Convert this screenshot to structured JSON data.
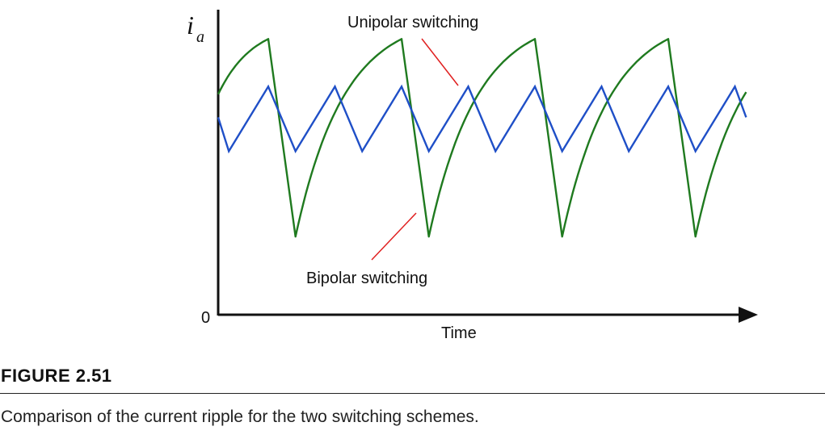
{
  "figure": {
    "label": "FIGURE 2.51",
    "caption": "Comparison of the current ripple for the two switching schemes."
  },
  "chart_data": {
    "type": "line",
    "xlabel": "Time",
    "ylabel": {
      "main": "i",
      "subscript": "a"
    },
    "y_origin_label": "0",
    "grid": false,
    "series": [
      {
        "name": "Unipolar switching",
        "color": "#1f4fc7",
        "points": [
          [
            0.0,
            0.647
          ],
          [
            0.02,
            0.536
          ],
          [
            0.094,
            0.748
          ],
          [
            0.145,
            0.536
          ],
          [
            0.219,
            0.748
          ],
          [
            0.27,
            0.536
          ],
          [
            0.344,
            0.748
          ],
          [
            0.395,
            0.536
          ],
          [
            0.469,
            0.748
          ],
          [
            0.52,
            0.536
          ],
          [
            0.594,
            0.748
          ],
          [
            0.645,
            0.536
          ],
          [
            0.719,
            0.748
          ],
          [
            0.77,
            0.536
          ],
          [
            0.844,
            0.748
          ],
          [
            0.895,
            0.536
          ],
          [
            0.969,
            0.748
          ],
          [
            0.99,
            0.647
          ]
        ]
      },
      {
        "name": "Bipolar switching",
        "color": "#1f7a1f",
        "segments": [
          {
            "type": "rise",
            "t0": -0.05,
            "t1": 0.094,
            "from": 0.45,
            "to": 0.904
          },
          {
            "type": "fall",
            "t0": 0.094,
            "t1": 0.145,
            "from": 0.904,
            "to": 0.256
          },
          {
            "type": "rise",
            "t0": 0.145,
            "t1": 0.344,
            "from": 0.256,
            "to": 0.904
          },
          {
            "type": "fall",
            "t0": 0.344,
            "t1": 0.395,
            "from": 0.904,
            "to": 0.256
          },
          {
            "type": "rise",
            "t0": 0.395,
            "t1": 0.594,
            "from": 0.256,
            "to": 0.904
          },
          {
            "type": "fall",
            "t0": 0.594,
            "t1": 0.645,
            "from": 0.904,
            "to": 0.256
          },
          {
            "type": "rise",
            "t0": 0.645,
            "t1": 0.844,
            "from": 0.256,
            "to": 0.904
          },
          {
            "type": "fall",
            "t0": 0.844,
            "t1": 0.895,
            "from": 0.904,
            "to": 0.256
          },
          {
            "type": "rise",
            "t0": 0.895,
            "t1": 1.094,
            "from": 0.256,
            "to": 0.904
          }
        ]
      }
    ],
    "annotations": [
      {
        "text": "Unipolar switching",
        "points_to": "Unipolar switching",
        "pointer_color": "#e02020"
      },
      {
        "text": "Bipolar switching",
        "points_to": "Bipolar switching",
        "pointer_color": "#e02020"
      }
    ]
  }
}
